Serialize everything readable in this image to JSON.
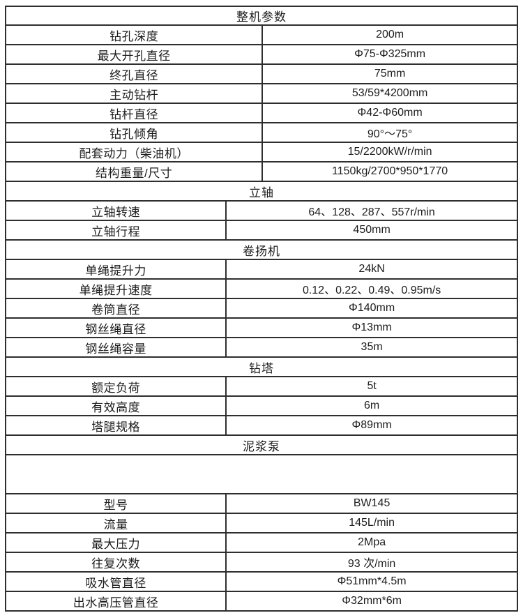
{
  "table": {
    "sections": [
      {
        "header": "整机参数",
        "rows": [
          {
            "label": "钻孔深度",
            "value": "200m"
          },
          {
            "label": "最大开孔直径",
            "value": "Φ75-Φ325mm"
          },
          {
            "label": "终孔直径",
            "value": "75mm"
          },
          {
            "label": "主动钻杆",
            "value": "53/59*4200mm"
          },
          {
            "label": "钻杆直径",
            "value": "Φ42-Φ60mm"
          },
          {
            "label": "钻孔倾角",
            "value": "90°～75°"
          },
          {
            "label": "配套动力（柴油机）",
            "value": "15/2200kW/r/min"
          },
          {
            "label": "结构重量/尺寸",
            "value": "1150kg/2700*950*1770"
          }
        ]
      },
      {
        "header": "立轴",
        "rows": [
          {
            "label": "立轴转速",
            "value": "64、128、287、557r/min"
          },
          {
            "label": "立轴行程",
            "value": "450mm"
          }
        ]
      },
      {
        "header": "卷扬机",
        "rows": [
          {
            "label": "单绳提升力",
            "value": "24kN"
          },
          {
            "label": "单绳提升速度",
            "value": "0.12、0.22、0.49、0.95m/s"
          },
          {
            "label": "卷筒直径",
            "value": "Φ140mm"
          },
          {
            "label": "钢丝绳直径",
            "value": "Φ13mm"
          },
          {
            "label": "钢丝绳容量",
            "value": "35m"
          }
        ]
      },
      {
        "header": "钻塔",
        "rows": [
          {
            "label": "额定负荷",
            "value": "5t"
          },
          {
            "label": "有效高度",
            "value": "6m"
          },
          {
            "label": "塔腿规格",
            "value": "Φ89mm"
          }
        ]
      },
      {
        "header": "泥浆泵",
        "spacer_row": "",
        "rows": [
          {
            "label": "型号",
            "value": "BW145"
          },
          {
            "label": "流量",
            "value": "145L/min"
          },
          {
            "label": "最大压力",
            "value": "2Mpa"
          },
          {
            "label": "往复次数",
            "value": "93 次/min"
          },
          {
            "label": "吸水管直径",
            "value": "Φ51mm*4.5m"
          },
          {
            "label": "出水高压管直径",
            "value": "Φ32mm*6m"
          }
        ]
      }
    ]
  }
}
